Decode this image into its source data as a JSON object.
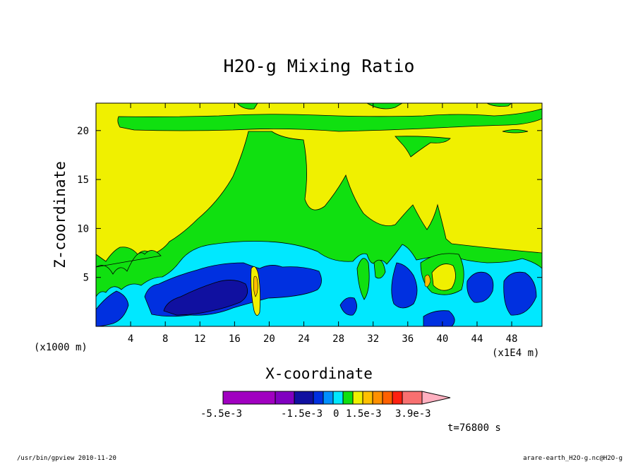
{
  "chart_data": {
    "type": "heatmap",
    "title": "H2O-g Mixing Ratio",
    "xlabel": "X-coordinate",
    "ylabel": "Z-coordinate",
    "x_unit_left": "(x1000 m)",
    "x_unit_right": "(x1E4 m)",
    "xlim": [
      0,
      51.5
    ],
    "ylim": [
      0,
      22.8
    ],
    "xticks": [
      "4",
      "8",
      "12",
      "16",
      "20",
      "24",
      "28",
      "32",
      "36",
      "40",
      "44",
      "48"
    ],
    "yticks": [
      "5",
      "10",
      "15",
      "20"
    ],
    "xtick_values": [
      4,
      8,
      12,
      16,
      20,
      24,
      28,
      32,
      36,
      40,
      44,
      48
    ],
    "ytick_values": [
      5,
      10,
      15,
      20
    ],
    "colorbar": {
      "colors": [
        "#a000c0",
        "#8000c0",
        "#1010a0",
        "#0030e0",
        "#0090ff",
        "#00e8ff",
        "#10e010",
        "#f0f000",
        "#ffc000",
        "#ff9000",
        "#ff6000",
        "#ff2010",
        "#f87070",
        "#ffb0c0"
      ],
      "labels": [
        "-5.5e-3",
        "-1.5e-3",
        "0",
        "1.5e-3",
        "3.9e-3"
      ]
    },
    "time_label": "t=76800 s"
  },
  "footer": {
    "left": "/usr/bin/gpview  2010-11-20",
    "right": "arare-earth_H2O-g.nc@H2O-g"
  }
}
